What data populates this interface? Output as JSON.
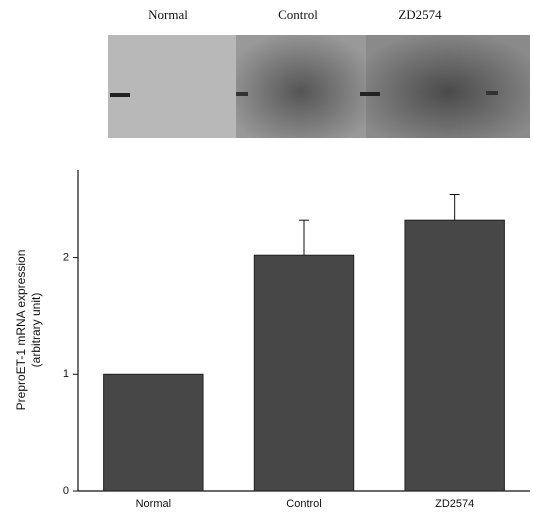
{
  "chart_data": {
    "type": "bar",
    "blot_labels": [
      "Normal",
      "Control",
      "ZD2574"
    ],
    "ylabel": [
      "PreproET-1 mRNA expression",
      "(arbitrary unit)"
    ],
    "categories": [
      "Normal",
      "Control",
      "ZD2574"
    ],
    "values": [
      1.0,
      2.02,
      2.32
    ],
    "errors": [
      null,
      0.3,
      0.22
    ],
    "color": "#474747",
    "ylim": [
      0,
      2.75
    ],
    "yticks": [
      0,
      1,
      2
    ]
  }
}
